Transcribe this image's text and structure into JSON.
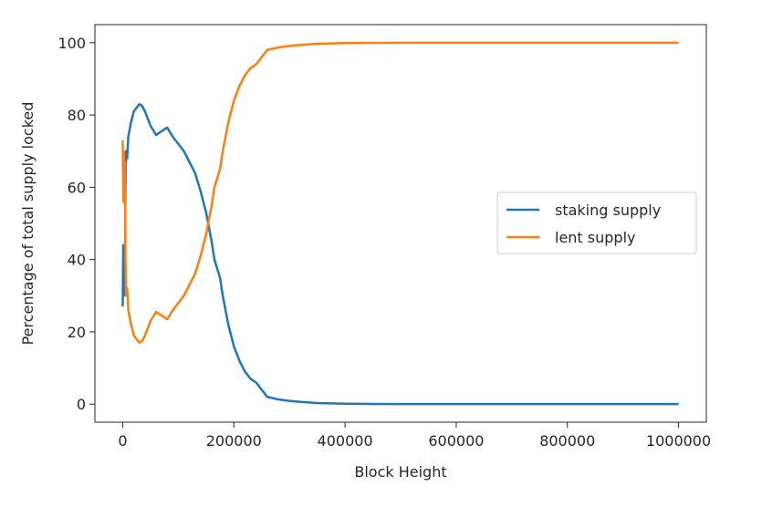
{
  "chart_data": {
    "type": "line",
    "title": "",
    "xlabel": "Block Height",
    "ylabel": "Percentage of total supply locked",
    "xlim": [
      -50000,
      1050000
    ],
    "ylim": [
      -5,
      105
    ],
    "xticks": [
      0,
      200000,
      400000,
      600000,
      800000,
      1000000
    ],
    "xtick_labels": [
      "0",
      "200000",
      "400000",
      "600000",
      "800000",
      "1000000"
    ],
    "yticks": [
      0,
      20,
      40,
      60,
      80,
      100
    ],
    "ytick_labels": [
      "0",
      "20",
      "40",
      "60",
      "80",
      "100"
    ],
    "grid": false,
    "legend_position": "center-right",
    "series": [
      {
        "name": "staking supply",
        "color": "#1f77b4",
        "x": [
          0,
          1000,
          2000,
          3000,
          4000,
          5000,
          6000,
          8000,
          10000,
          15000,
          20000,
          25000,
          30000,
          35000,
          40000,
          50000,
          60000,
          70000,
          80000,
          90000,
          100000,
          110000,
          120000,
          130000,
          140000,
          150000,
          160000,
          165000,
          175000,
          180000,
          190000,
          200000,
          210000,
          220000,
          230000,
          240000,
          250000,
          260000,
          280000,
          300000,
          320000,
          350000,
          400000,
          450000,
          500000,
          600000,
          700000,
          800000,
          900000,
          1000000
        ],
        "y": [
          27,
          44,
          30,
          40,
          33,
          60,
          70,
          68,
          74,
          78,
          81,
          82,
          83,
          82.5,
          81,
          77,
          74.5,
          75.5,
          76.5,
          74,
          72,
          70,
          67,
          64,
          59,
          53,
          45,
          40,
          35,
          30,
          22,
          16,
          12,
          9,
          7,
          6,
          4,
          2,
          1.3,
          0.9,
          0.6,
          0.3,
          0.1,
          0.05,
          0.02,
          0,
          0,
          0,
          0,
          0
        ]
      },
      {
        "name": "lent supply",
        "color": "#ff7f0e",
        "x": [
          0,
          1000,
          2000,
          3000,
          4000,
          5000,
          6000,
          8000,
          10000,
          15000,
          20000,
          25000,
          30000,
          35000,
          40000,
          50000,
          60000,
          70000,
          80000,
          90000,
          100000,
          110000,
          120000,
          130000,
          140000,
          150000,
          160000,
          165000,
          175000,
          180000,
          190000,
          200000,
          210000,
          220000,
          230000,
          240000,
          250000,
          260000,
          280000,
          300000,
          320000,
          350000,
          400000,
          450000,
          500000,
          600000,
          700000,
          800000,
          900000,
          1000000
        ],
        "y": [
          73,
          56,
          70,
          60,
          67,
          40,
          30,
          32,
          26,
          22,
          19,
          18,
          17,
          17.5,
          19,
          23,
          25.5,
          24.5,
          23.5,
          26,
          28,
          30,
          33,
          36,
          41,
          47,
          55,
          60,
          65,
          70,
          78,
          84,
          88,
          91,
          93,
          94,
          96,
          98,
          98.7,
          99.1,
          99.4,
          99.7,
          99.9,
          99.95,
          99.98,
          100,
          100,
          100,
          100,
          100
        ]
      }
    ]
  }
}
